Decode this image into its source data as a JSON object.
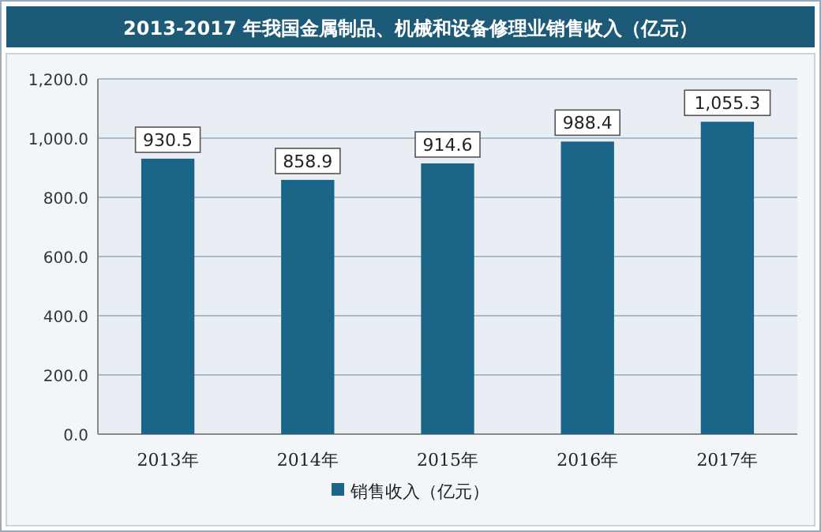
{
  "chart_data": {
    "type": "bar",
    "title": "2013-2017 年我国金属制品、机械和设备修理业销售收入（亿元）",
    "categories": [
      "2013年",
      "2014年",
      "2015年",
      "2016年",
      "2017年"
    ],
    "series": [
      {
        "name": "销售收入（亿元）",
        "color": "#1b6688",
        "values": [
          930.5,
          858.9,
          914.6,
          988.4,
          1055.3
        ],
        "value_labels": [
          "930.5",
          "858.9",
          "914.6",
          "988.4",
          "1,055.3"
        ]
      }
    ],
    "ylim": [
      0,
      1200
    ],
    "yticks": [
      {
        "value": 0,
        "label": "0.0"
      },
      {
        "value": 200,
        "label": "200.0"
      },
      {
        "value": 400,
        "label": "400.0"
      },
      {
        "value": 600,
        "label": "600.0"
      },
      {
        "value": 800,
        "label": "800.0"
      },
      {
        "value": 1000,
        "label": "1,000.0"
      },
      {
        "value": 1200,
        "label": "1,200.0"
      }
    ],
    "grid": "y",
    "legend": "bottom"
  }
}
